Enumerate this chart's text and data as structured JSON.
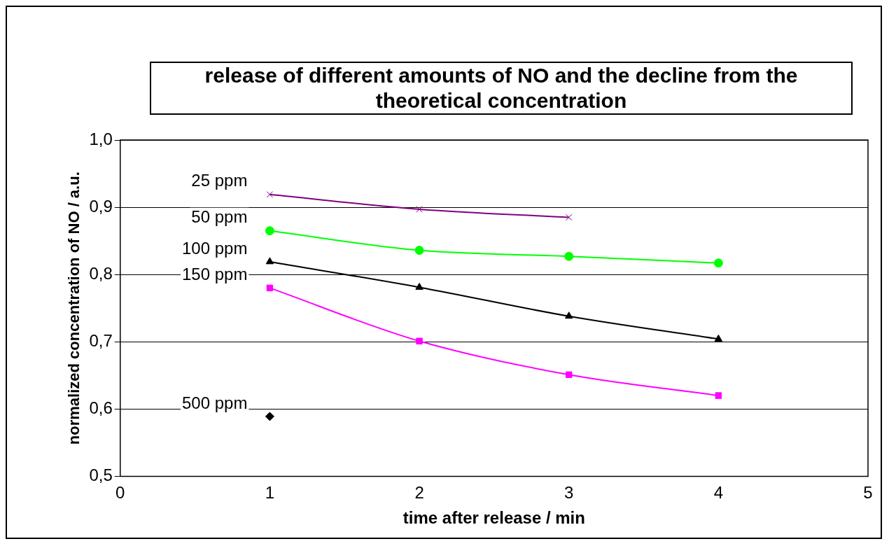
{
  "chart_data": {
    "type": "line",
    "title": "release of different amounts of NO and the decline from the theoretical concentration",
    "xlabel": "time after release / min",
    "ylabel": "normalized concentration of NO / a.u.",
    "xlim": [
      0,
      5
    ],
    "xticks": [
      0,
      1,
      2,
      3,
      4,
      5
    ],
    "ylim": [
      0.5,
      1.0
    ],
    "yticks": [
      {
        "value": 0.5,
        "label": "0,5"
      },
      {
        "value": 0.6,
        "label": "0,6"
      },
      {
        "value": 0.7,
        "label": "0,7"
      },
      {
        "value": 0.8,
        "label": "0,8"
      },
      {
        "value": 0.9,
        "label": "0,9"
      },
      {
        "value": 1.0,
        "label": "1,0"
      }
    ],
    "grid": "y",
    "legend": false,
    "line_style": "solid",
    "series": [
      {
        "name": "25 ppm",
        "color": "#800080",
        "marker": "cross",
        "x": [
          1,
          2,
          3
        ],
        "values": [
          0.919,
          0.897,
          0.885
        ]
      },
      {
        "name": "50 ppm",
        "color": "#00ff00",
        "marker": "circle",
        "x": [
          1,
          2,
          3,
          4
        ],
        "values": [
          0.865,
          0.836,
          0.827,
          0.817
        ]
      },
      {
        "name": "100 ppm",
        "color": "#000000",
        "marker": "triangle",
        "x": [
          1,
          2,
          3,
          4
        ],
        "values": [
          0.819,
          0.781,
          0.738,
          0.704
        ]
      },
      {
        "name": "150 ppm",
        "color": "#ff00ff",
        "marker": "square",
        "x": [
          1,
          2,
          3,
          4
        ],
        "values": [
          0.78,
          0.701,
          0.651,
          0.62
        ]
      },
      {
        "name": "500 ppm",
        "color": "#000000",
        "marker": "diamond",
        "x": [
          1
        ],
        "values": [
          0.589
        ]
      }
    ]
  }
}
